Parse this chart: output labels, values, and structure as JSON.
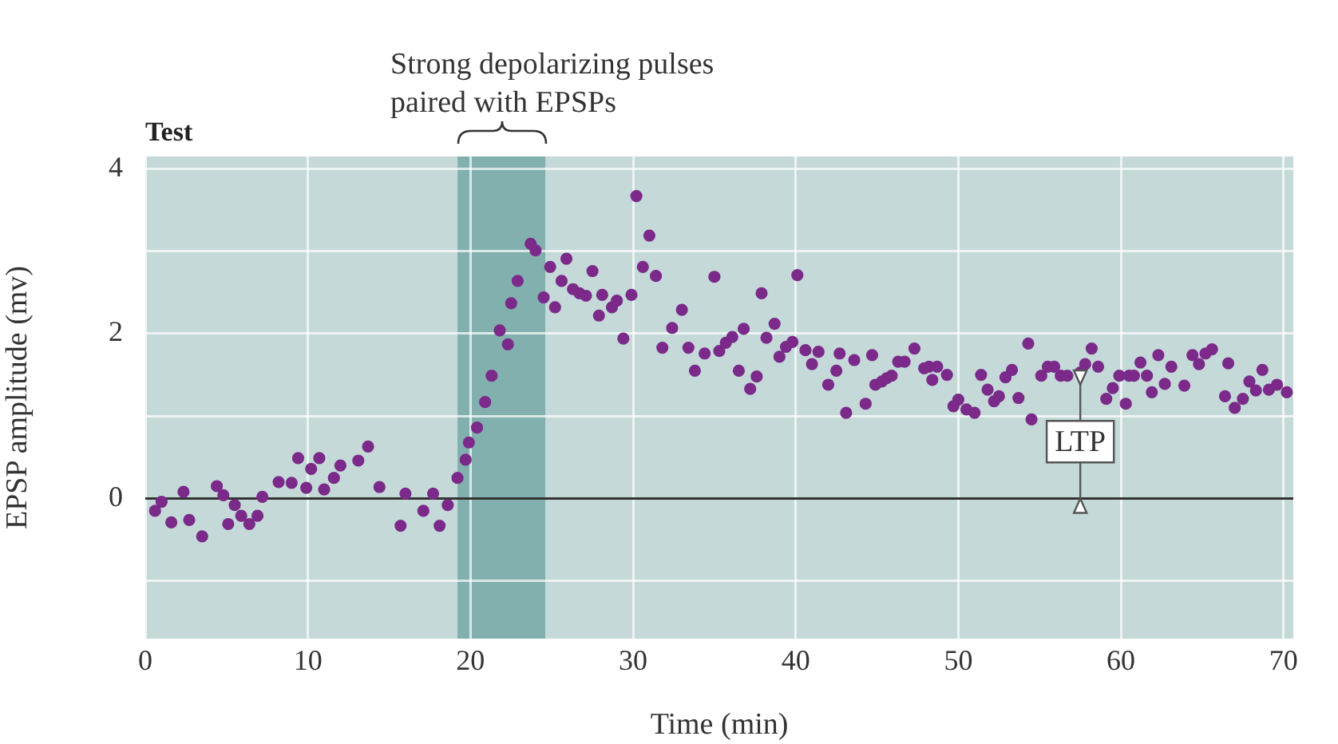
{
  "chart_data": {
    "type": "scatter",
    "title": "Test",
    "xlabel": "Time (min)",
    "ylabel": "EPSP amplitude (mv)",
    "xlim": [
      0,
      70.6
    ],
    "xticks": [
      0,
      10,
      20,
      30,
      40,
      50,
      60,
      70
    ],
    "ylim": [
      -1.7,
      4.15
    ],
    "yticks": [
      {
        "value": -1,
        "label": null
      },
      0,
      {
        "value": 1,
        "label": null
      },
      2,
      {
        "value": 3,
        "label": null
      },
      4
    ],
    "grid": true,
    "legend": false,
    "marker": "circle",
    "bands": [
      {
        "axis": "x",
        "from": 19.2,
        "to": 24.6,
        "color": "#82b0ae"
      }
    ],
    "ref_lines": [
      {
        "axis": "y",
        "value": 0,
        "color": "#333333"
      }
    ],
    "annotations": [
      "Strong depolarizing pulses\npaired with EPSPs",
      {
        "text": "LTP",
        "x": 57.5,
        "y": 0.69
      }
    ],
    "series": [
      {
        "color": "#7b2a8a",
        "x": [
          0.6,
          1.0,
          1.6,
          2.35,
          2.7,
          3.5,
          4.4,
          4.8,
          5.1,
          5.5,
          5.9,
          6.4,
          6.9,
          7.2,
          8.2,
          9.0,
          9.4,
          9.9,
          10.2,
          10.7,
          11.0,
          11.6,
          12.0,
          13.1,
          13.7,
          14.4,
          15.7,
          16.0,
          17.1,
          17.7,
          18.1,
          18.6,
          19.2,
          19.7,
          19.9,
          20.4,
          20.9,
          21.3,
          21.8,
          22.3,
          22.5,
          22.9,
          23.7,
          24.0,
          24.5,
          24.9,
          25.2,
          25.6,
          25.9,
          26.3,
          26.7,
          27.1,
          27.5,
          27.9,
          28.1,
          28.7,
          29.0,
          29.4,
          29.9,
          30.2,
          30.6,
          31.0,
          31.4,
          31.8,
          32.4,
          33.0,
          33.4,
          33.8,
          34.4,
          35.0,
          35.3,
          35.7,
          36.1,
          36.5,
          36.8,
          37.2,
          37.6,
          37.9,
          38.2,
          38.7,
          39.0,
          39.4,
          39.8,
          40.1,
          40.6,
          41.0,
          41.4,
          42.0,
          42.5,
          42.7,
          43.1,
          43.6,
          44.3,
          44.7,
          44.9,
          45.3,
          45.6,
          45.9,
          46.3,
          46.7,
          47.3,
          47.9,
          48.2,
          48.4,
          48.7,
          49.3,
          49.7,
          50.0,
          50.5,
          51.0,
          51.4,
          51.8,
          52.2,
          52.5,
          52.9,
          53.3,
          53.7,
          54.3,
          54.5,
          55.1,
          55.5,
          55.9,
          56.3,
          56.7,
          57.5,
          57.8,
          58.2,
          58.6,
          59.1,
          59.5,
          59.9,
          60.3,
          60.5,
          60.8,
          61.2,
          61.6,
          61.9,
          62.3,
          62.7,
          63.1,
          63.9,
          64.4,
          64.8,
          65.2,
          65.6,
          66.4,
          66.6,
          67.0,
          67.5,
          67.9,
          68.3,
          68.7,
          69.1,
          69.6,
          70.2
        ],
        "values": [
          -0.15,
          -0.04,
          -0.29,
          0.08,
          -0.26,
          -0.46,
          0.15,
          0.04,
          -0.31,
          -0.08,
          -0.21,
          -0.31,
          -0.21,
          0.02,
          0.2,
          0.19,
          0.49,
          0.13,
          0.36,
          0.49,
          0.11,
          0.25,
          0.4,
          0.46,
          0.63,
          0.14,
          -0.33,
          0.06,
          -0.15,
          0.06,
          -0.33,
          -0.08,
          0.25,
          0.47,
          0.68,
          0.86,
          1.17,
          1.49,
          2.04,
          1.87,
          2.37,
          2.64,
          3.09,
          3.01,
          2.44,
          2.81,
          2.32,
          2.64,
          2.91,
          2.54,
          2.49,
          2.46,
          2.76,
          2.22,
          2.47,
          2.32,
          2.4,
          1.94,
          2.47,
          3.67,
          2.81,
          3.19,
          2.7,
          1.83,
          2.07,
          2.29,
          1.83,
          1.55,
          1.76,
          2.69,
          1.79,
          1.89,
          1.96,
          1.55,
          2.06,
          1.33,
          1.48,
          2.49,
          1.95,
          2.12,
          1.72,
          1.84,
          1.9,
          2.71,
          1.8,
          1.63,
          1.78,
          1.38,
          1.55,
          1.76,
          1.04,
          1.68,
          1.15,
          1.74,
          1.38,
          1.42,
          1.46,
          1.49,
          1.66,
          1.66,
          1.82,
          1.58,
          1.6,
          1.44,
          1.6,
          1.5,
          1.12,
          1.2,
          1.08,
          1.04,
          1.5,
          1.32,
          1.18,
          1.24,
          1.47,
          1.56,
          1.22,
          1.88,
          0.96,
          1.49,
          1.6,
          1.6,
          1.49,
          1.49,
          1.53,
          1.63,
          1.82,
          1.6,
          1.21,
          1.34,
          1.49,
          1.15,
          1.49,
          1.49,
          1.65,
          1.49,
          1.29,
          1.74,
          1.39,
          1.6,
          1.37,
          1.74,
          1.63,
          1.76,
          1.81,
          1.24,
          1.64,
          1.1,
          1.21,
          1.42,
          1.31,
          1.56,
          1.32,
          1.38,
          1.29
        ]
      }
    ]
  }
}
